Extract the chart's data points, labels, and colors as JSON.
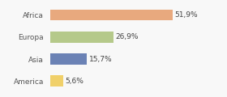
{
  "categories": [
    "Africa",
    "Europa",
    "Asia",
    "America"
  ],
  "values": [
    51.9,
    26.9,
    15.7,
    5.6
  ],
  "labels": [
    "51,9%",
    "26,9%",
    "15,7%",
    "5,6%"
  ],
  "bar_colors": [
    "#e8a97e",
    "#b5c98a",
    "#6b82b5",
    "#f0d06a"
  ],
  "background_color": "#f8f8f8",
  "xlim": [
    0,
    72
  ],
  "label_fontsize": 6.5,
  "tick_fontsize": 6.5,
  "bar_height": 0.5
}
